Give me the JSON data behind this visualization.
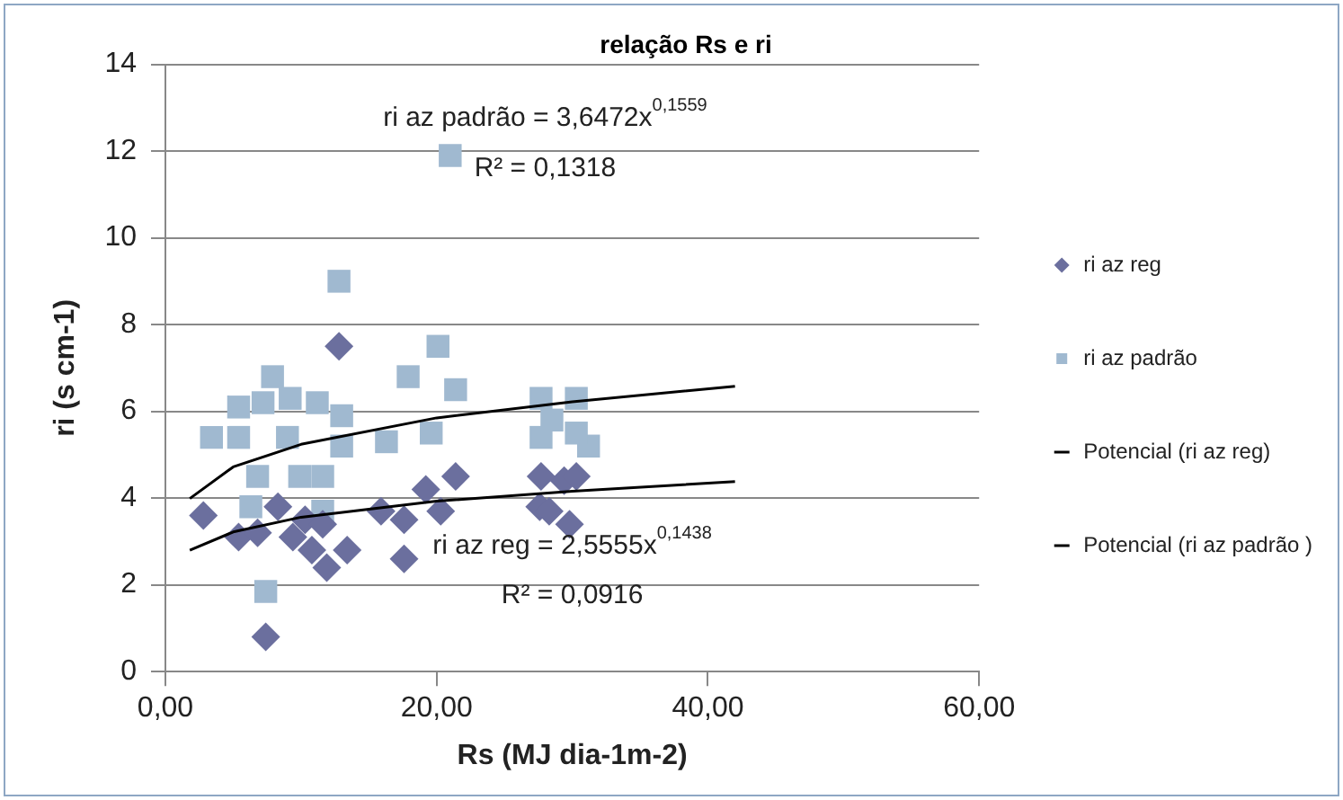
{
  "chart_data": {
    "type": "scatter",
    "title": "relação Rs e ri",
    "xlabel": "Rs (MJ dia-1m-2)",
    "ylabel": "ri (s cm-1)",
    "xlim": [
      0,
      60
    ],
    "xticks": [
      {
        "value": 0,
        "label": "0,00"
      },
      {
        "value": 20,
        "label": "20,00"
      },
      {
        "value": 40,
        "label": "40,00"
      },
      {
        "value": 60,
        "label": "60,00"
      }
    ],
    "ylim": [
      0,
      14
    ],
    "yticks": [
      0,
      2,
      4,
      6,
      8,
      10,
      12,
      14
    ],
    "grid": "y",
    "legend": "right",
    "series": [
      {
        "name": "ri az reg",
        "color": "#6b6f9e",
        "marker": "diamond",
        "x": [
          7.4,
          17.6,
          2.8,
          5.4,
          6.8,
          8.3,
          9.4,
          10.8,
          11.9,
          13.4,
          10.3,
          11.6,
          12.8,
          15.9,
          17.6,
          19.2,
          20.3,
          21.4,
          27.6,
          29.4,
          27.7,
          30.3,
          28.3,
          29.8
        ],
        "values": [
          0.8,
          2.6,
          3.6,
          3.1,
          3.2,
          3.8,
          3.1,
          2.8,
          2.4,
          2.8,
          3.5,
          3.4,
          7.5,
          3.7,
          3.5,
          4.2,
          3.7,
          4.5,
          3.8,
          4.4,
          4.5,
          4.5,
          3.7,
          3.4
        ]
      },
      {
        "name": "ri az padrão",
        "color": "#a0b9d0",
        "marker": "square",
        "x": [
          7.4,
          3.4,
          5.4,
          5.4,
          7.9,
          7.2,
          9.2,
          11.2,
          13.0,
          9.0,
          6.8,
          6.3,
          9.9,
          11.6,
          13.0,
          11.6,
          16.3,
          17.9,
          20.1,
          21.4,
          19.6,
          12.8,
          21.0,
          27.7,
          30.3,
          27.7,
          31.2,
          28.5,
          30.3
        ],
        "values": [
          1.85,
          5.4,
          6.1,
          5.4,
          6.8,
          6.2,
          6.3,
          6.2,
          5.9,
          5.4,
          4.5,
          3.8,
          4.5,
          4.5,
          5.2,
          3.7,
          5.3,
          6.8,
          7.5,
          6.5,
          5.5,
          9.0,
          11.9,
          6.3,
          6.3,
          5.4,
          5.2,
          5.8,
          5.5
        ]
      },
      {
        "name": "Potencial (ri az reg)",
        "type": "line",
        "color": "#000000",
        "marker": "none",
        "line_style": "solid",
        "x": [
          1.8,
          5,
          10,
          20,
          30,
          42
        ],
        "values": [
          2.8,
          3.22,
          3.56,
          3.93,
          4.16,
          4.38
        ]
      },
      {
        "name": "Potencial (ri az padrão )",
        "type": "line",
        "color": "#000000",
        "marker": "none",
        "line_style": "solid",
        "x": [
          1.8,
          5,
          10,
          20,
          30,
          42
        ],
        "values": [
          3.99,
          4.72,
          5.24,
          5.85,
          6.22,
          6.58
        ]
      }
    ],
    "annotations": [
      "ri az padrão = 3,6472x$^{0,1559}$",
      "R² = 0,1318",
      "ri az reg = 2,5555x$^{0,1438}$",
      "R² = 0,0916"
    ]
  }
}
